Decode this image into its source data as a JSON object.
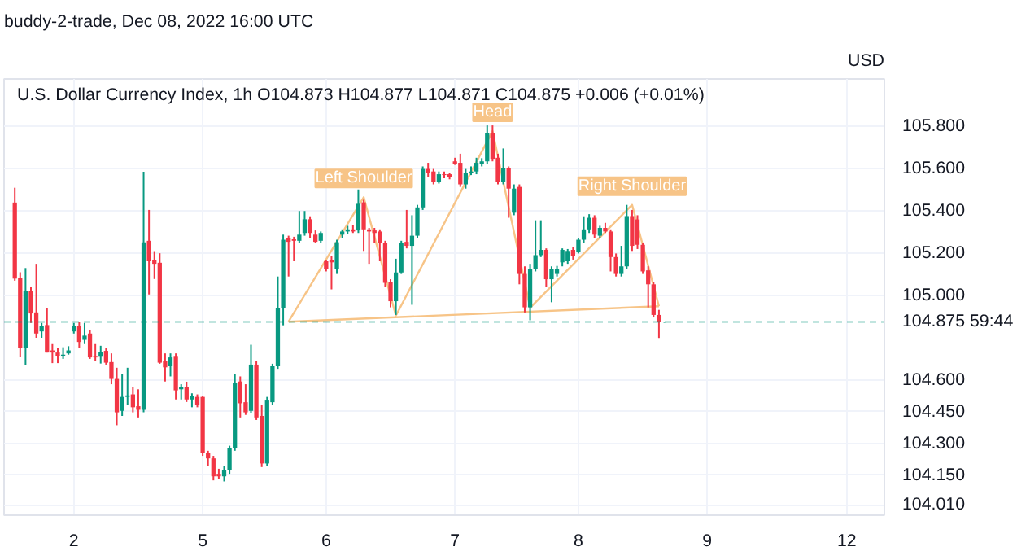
{
  "chart_data": {
    "type": "candlestick",
    "title": "U.S. Dollar Currency Index, 1h",
    "subtitle": "O104.873 H104.877 L104.871 C104.875 +0.006 (+0.01%)",
    "ylabel": "USD",
    "annotations": [
      "buddy-2-trade, Dec 08, 2022 16:00 UTC",
      {
        "text": "Left Shoulder",
        "y": 105.465
      },
      {
        "text": "Head",
        "y": 105.778
      },
      {
        "text": "Right Shoulder",
        "y": 105.429
      }
    ],
    "categories": [
      null,
      null,
      null,
      null,
      null,
      null,
      null,
      null,
      null,
      null,
      null,
      "2",
      null,
      null,
      null,
      null,
      null,
      null,
      null,
      null,
      null,
      null,
      null,
      null,
      null,
      null,
      null,
      null,
      null,
      null,
      null,
      null,
      null,
      null,
      null,
      "5",
      null,
      null,
      null,
      null,
      null,
      null,
      null,
      null,
      null,
      null,
      null,
      null,
      null,
      null,
      null,
      null,
      null,
      null,
      null,
      null,
      null,
      null,
      "6",
      null,
      null,
      null,
      null,
      null,
      null,
      null,
      null,
      null,
      null,
      null,
      null,
      null,
      null,
      null,
      null,
      null,
      null,
      null,
      null,
      null,
      null,
      null,
      "7",
      null,
      null,
      null,
      null,
      null,
      null,
      null,
      null,
      null,
      null,
      null,
      null,
      null,
      null,
      null,
      null,
      null,
      null,
      null,
      null,
      null,
      null,
      "8",
      null,
      null,
      null,
      null,
      null,
      null,
      null,
      null,
      null,
      null,
      null,
      null,
      null,
      null,
      null,
      null,
      null,
      null,
      null,
      null,
      null,
      null,
      null,
      "9",
      null,
      null,
      null,
      null,
      null,
      null,
      null,
      null,
      null,
      null,
      null,
      null,
      null,
      null,
      null,
      null,
      null,
      null,
      null,
      null,
      null,
      null,
      null,
      null,
      null,
      "12"
    ],
    "ohlc": [
      [
        105.44,
        105.51,
        105.07,
        105.08
      ],
      [
        105.085,
        105.11,
        104.71,
        104.75
      ],
      [
        104.75,
        105.13,
        104.67,
        105.02
      ],
      [
        105.02,
        105.04,
        104.87,
        104.915
      ],
      [
        104.92,
        105.15,
        104.8,
        104.82
      ],
      [
        104.83,
        104.87,
        104.8,
        104.855
      ],
      [
        104.86,
        104.94,
        104.73,
        104.73
      ],
      [
        104.74,
        104.77,
        104.68,
        104.73
      ],
      [
        104.73,
        104.75,
        104.68,
        104.715
      ],
      [
        104.715,
        104.755,
        104.7,
        104.72
      ],
      [
        104.726,
        104.76,
        104.72,
        104.74
      ],
      [
        104.83,
        104.87,
        104.82,
        104.857
      ],
      [
        104.857,
        104.876,
        104.75,
        104.78
      ],
      [
        104.79,
        104.87,
        104.77,
        104.81
      ],
      [
        104.82,
        104.835,
        104.7,
        104.707
      ],
      [
        104.714,
        104.77,
        104.69,
        104.707
      ],
      [
        104.714,
        104.762,
        104.678,
        104.733
      ],
      [
        104.738,
        104.75,
        104.673,
        104.682
      ],
      [
        104.685,
        104.726,
        104.58,
        104.605
      ],
      [
        104.605,
        104.658,
        104.386,
        104.447
      ],
      [
        104.454,
        104.63,
        104.43,
        104.52
      ],
      [
        104.52,
        104.658,
        104.483,
        104.527
      ],
      [
        104.532,
        104.568,
        104.447,
        104.471
      ],
      [
        104.476,
        104.556,
        104.423,
        104.459
      ],
      [
        104.459,
        105.586,
        104.447,
        105.252
      ],
      [
        105.259,
        105.405,
        105.005,
        105.162
      ],
      [
        105.167,
        105.21,
        105.078,
        105.15
      ],
      [
        105.155,
        105.2,
        104.677,
        104.682
      ],
      [
        104.69,
        104.726,
        104.593,
        104.66
      ],
      [
        104.665,
        104.726,
        104.617,
        104.707
      ],
      [
        104.714,
        104.726,
        104.508,
        104.551
      ],
      [
        104.556,
        104.58,
        104.508,
        104.568
      ],
      [
        104.568,
        104.592,
        104.496,
        104.508
      ],
      [
        104.508,
        104.537,
        104.471,
        104.525
      ],
      [
        104.52,
        104.532,
        104.471,
        104.483
      ],
      [
        104.52,
        104.525,
        104.241,
        104.253
      ],
      [
        104.253,
        104.265,
        104.193,
        104.229
      ],
      [
        104.229,
        104.241,
        104.125,
        104.144
      ],
      [
        104.156,
        104.18,
        104.132,
        104.144
      ],
      [
        104.144,
        104.193,
        104.12,
        104.173
      ],
      [
        104.173,
        104.289,
        104.156,
        104.277
      ],
      [
        104.277,
        104.629,
        104.265,
        104.585
      ],
      [
        104.593,
        104.617,
        104.423,
        104.49
      ],
      [
        104.495,
        104.58,
        104.435,
        104.447
      ],
      [
        104.454,
        104.767,
        104.442,
        104.673
      ],
      [
        104.673,
        104.69,
        104.411,
        104.423
      ],
      [
        104.43,
        104.483,
        104.188,
        104.205
      ],
      [
        104.205,
        104.52,
        104.193,
        104.503
      ],
      [
        104.495,
        104.677,
        104.483,
        104.665
      ],
      [
        104.665,
        105.09,
        104.653,
        104.939
      ],
      [
        104.939,
        105.288,
        104.859,
        105.264
      ],
      [
        105.271,
        105.283,
        105.09,
        105.254
      ],
      [
        105.266,
        105.278,
        105.162,
        105.259
      ],
      [
        105.259,
        105.4,
        105.247,
        105.288
      ],
      [
        105.296,
        105.4,
        105.283,
        105.361
      ],
      [
        105.361,
        105.375,
        105.271,
        105.296
      ],
      [
        105.288,
        105.308,
        105.247,
        105.254
      ],
      [
        105.259,
        105.303,
        105.247,
        105.296
      ],
      [
        105.162,
        105.167,
        105.114,
        105.126
      ],
      [
        105.167,
        105.186,
        105.029,
        105.157
      ],
      [
        105.126,
        105.264,
        105.102,
        105.252
      ],
      [
        105.288,
        105.313,
        105.271,
        105.303
      ],
      [
        105.303,
        105.33,
        105.29,
        105.313
      ],
      [
        105.313,
        105.332,
        105.296,
        105.303
      ],
      [
        105.308,
        105.502,
        105.296,
        105.434
      ],
      [
        105.441,
        105.453,
        105.211,
        105.313
      ],
      [
        105.313,
        105.32,
        105.15,
        105.303
      ],
      [
        105.308,
        105.32,
        105.247,
        105.296
      ],
      [
        105.303,
        105.313,
        105.162,
        105.247
      ],
      [
        105.247,
        105.259,
        105.041,
        105.06
      ],
      [
        105.065,
        105.077,
        104.944,
        104.973
      ],
      [
        104.973,
        105.174,
        104.908,
        105.109
      ],
      [
        105.109,
        105.259,
        105.102,
        105.247
      ],
      [
        105.254,
        105.405,
        105.223,
        105.235
      ],
      [
        105.235,
        105.38,
        104.956,
        105.283
      ],
      [
        105.283,
        105.429,
        105.271,
        105.417
      ],
      [
        105.417,
        105.611,
        105.405,
        105.599
      ],
      [
        105.599,
        105.628,
        105.562,
        105.579
      ],
      [
        105.587,
        105.599,
        105.526,
        105.538
      ],
      [
        105.538,
        105.587,
        105.53,
        105.574
      ],
      [
        105.574,
        105.587,
        105.555,
        105.57
      ],
      [
        105.574,
        105.582,
        105.55,
        105.562
      ],
      [
        105.635,
        105.652,
        105.618,
        105.623
      ],
      [
        105.628,
        105.671,
        105.514,
        105.526
      ],
      [
        105.526,
        105.599,
        105.506,
        105.579
      ],
      [
        105.579,
        105.611,
        105.57,
        105.587
      ],
      [
        105.587,
        105.652,
        105.574,
        105.628
      ],
      [
        105.623,
        105.65,
        105.611,
        105.635
      ],
      [
        105.635,
        105.805,
        105.623,
        105.768
      ],
      [
        105.768,
        105.805,
        105.635,
        105.647
      ],
      [
        105.652,
        105.671,
        105.526,
        105.538
      ],
      [
        105.538,
        105.696,
        105.526,
        105.603
      ],
      [
        105.603,
        105.611,
        105.368,
        105.506
      ],
      [
        105.392,
        105.526,
        105.38,
        105.506
      ],
      [
        105.514,
        105.526,
        105.053,
        105.102
      ],
      [
        105.102,
        105.138,
        104.92,
        104.944
      ],
      [
        104.944,
        105.15,
        104.883,
        105.126
      ],
      [
        105.126,
        105.356,
        105.114,
        105.191
      ],
      [
        105.191,
        105.356,
        105.182,
        105.216
      ],
      [
        105.216,
        105.223,
        105.041,
        105.077
      ],
      [
        105.077,
        105.138,
        104.968,
        105.126
      ],
      [
        105.102,
        105.14,
        105.09,
        105.126
      ],
      [
        105.157,
        105.223,
        105.138,
        105.216
      ],
      [
        105.162,
        105.22,
        105.15,
        105.211
      ],
      [
        105.216,
        105.228,
        105.17,
        105.186
      ],
      [
        105.206,
        105.271,
        105.199,
        105.264
      ],
      [
        105.264,
        105.375,
        105.247,
        105.313
      ],
      [
        105.313,
        105.385,
        105.296,
        105.368
      ],
      [
        105.368,
        105.38,
        105.271,
        105.288
      ],
      [
        105.283,
        105.33,
        105.27,
        105.32
      ],
      [
        105.32,
        105.344,
        105.296,
        105.303
      ],
      [
        105.303,
        105.313,
        105.114,
        105.182
      ],
      [
        105.182,
        105.199,
        105.09,
        105.102
      ],
      [
        105.102,
        105.235,
        105.09,
        105.138
      ],
      [
        105.138,
        105.429,
        105.126,
        105.376
      ],
      [
        105.376,
        105.405,
        105.211,
        105.235
      ],
      [
        105.36,
        105.38,
        105.22,
        105.24
      ],
      [
        105.24,
        105.247,
        105.102,
        105.114
      ],
      [
        105.119,
        105.138,
        104.944,
        105.053
      ],
      [
        105.053,
        105.065,
        104.896,
        104.908
      ],
      [
        104.908,
        104.932,
        104.799,
        104.876
      ],
      [
        104.873,
        104.877,
        104.871,
        104.875
      ],
      null,
      null,
      null,
      null,
      null,
      null,
      null,
      null,
      null,
      null,
      null,
      null,
      null,
      null,
      null,
      null,
      null,
      null,
      null,
      null,
      null,
      null,
      null,
      null,
      null,
      null,
      null,
      null,
      null,
      null,
      null,
      null,
      null,
      null
    ],
    "series": [
      {
        "type": "line",
        "color": "#f7c487",
        "values": [
          null,
          null,
          null,
          null,
          null,
          null,
          null,
          null,
          null,
          null,
          null,
          null,
          null,
          null,
          null,
          null,
          null,
          null,
          null,
          null,
          null,
          null,
          null,
          null,
          null,
          null,
          null,
          null,
          null,
          null,
          null,
          null,
          null,
          null,
          null,
          null,
          null,
          null,
          null,
          null,
          null,
          null,
          null,
          null,
          null,
          null,
          null,
          null,
          null,
          null,
          null,
          104.876,
          null,
          null,
          null,
          null,
          null,
          null,
          null,
          null,
          null,
          null,
          null,
          null,
          null,
          105.465,
          null,
          null,
          null,
          null,
          null,
          104.905,
          null,
          null,
          null,
          null,
          null,
          null,
          null,
          null,
          null,
          null,
          null,
          null,
          null,
          null,
          null,
          null,
          null,
          105.778,
          null,
          null,
          null,
          null,
          null,
          null,
          104.942,
          null,
          null,
          null,
          null,
          null,
          null,
          null,
          null,
          null,
          null,
          null,
          null,
          null,
          null,
          null,
          null,
          null,
          null,
          105.429,
          null,
          null,
          null,
          null,
          104.949,
          null,
          null,
          null,
          null,
          null,
          null,
          null,
          null,
          null,
          null,
          null,
          null,
          null,
          null,
          null,
          null,
          null,
          null,
          null,
          null,
          null,
          null,
          null,
          null,
          null,
          null,
          null,
          null,
          null,
          null,
          null,
          null,
          null,
          null,
          null
        ]
      },
      {
        "type": "line",
        "color": "#f7c487",
        "values": [
          null,
          null,
          null,
          null,
          null,
          null,
          null,
          null,
          null,
          null,
          null,
          null,
          null,
          null,
          null,
          null,
          null,
          null,
          null,
          null,
          null,
          null,
          null,
          null,
          null,
          null,
          null,
          null,
          null,
          null,
          null,
          null,
          null,
          null,
          null,
          null,
          null,
          null,
          null,
          null,
          null,
          null,
          null,
          null,
          null,
          null,
          null,
          null,
          null,
          null,
          null,
          104.876,
          null,
          null,
          null,
          null,
          null,
          null,
          null,
          null,
          null,
          null,
          null,
          null,
          null,
          null,
          null,
          null,
          null,
          null,
          null,
          null,
          null,
          null,
          null,
          null,
          null,
          null,
          null,
          null,
          null,
          null,
          null,
          null,
          null,
          null,
          null,
          null,
          null,
          null,
          null,
          null,
          null,
          null,
          null,
          null,
          null,
          null,
          null,
          null,
          null,
          null,
          null,
          null,
          null,
          null,
          null,
          null,
          null,
          null,
          null,
          null,
          null,
          null,
          null,
          null,
          null,
          null,
          null,
          null,
          104.949,
          null,
          null,
          null,
          null,
          null,
          null,
          null,
          null,
          null,
          null,
          null,
          null,
          null,
          null,
          null,
          null,
          null,
          null,
          null,
          null,
          null,
          null,
          null,
          null,
          null,
          null,
          null,
          null,
          null,
          null,
          null,
          null,
          null,
          null,
          null
        ]
      }
    ],
    "ref_lines": [
      {
        "axis": "y",
        "value": 104.875,
        "label": "104.875 59:44",
        "color": "#089981",
        "line_style": "dashed"
      }
    ],
    "ylim": [
      103.96,
      106.025
    ],
    "yticks": [
      {
        "value": 104.01,
        "label": "104.010"
      },
      {
        "value": 104.15,
        "label": "104.150"
      },
      {
        "value": 104.3,
        "label": "104.300"
      },
      {
        "value": 104.45,
        "label": "104.450"
      },
      {
        "value": 104.6,
        "label": "104.600"
      },
      {
        "value": 105.0,
        "label": "105.000"
      },
      {
        "value": 105.2,
        "label": "105.200"
      },
      {
        "value": 105.4,
        "label": "105.400"
      },
      {
        "value": 105.6,
        "label": "105.600"
      },
      {
        "value": 105.8,
        "label": "105.800"
      }
    ],
    "grid": true
  }
}
